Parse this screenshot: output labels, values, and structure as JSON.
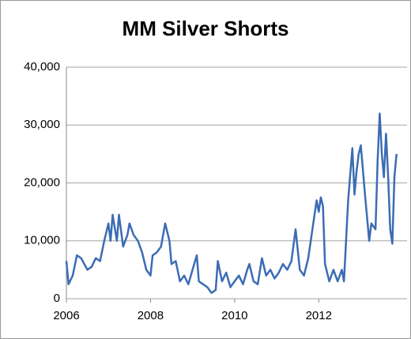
{
  "chart_data": {
    "type": "line",
    "title": "MM Silver Shorts",
    "x": [
      2006.0,
      2006.05,
      2006.15,
      2006.25,
      2006.35,
      2006.5,
      2006.6,
      2006.7,
      2006.8,
      2006.9,
      2007.0,
      2007.05,
      2007.1,
      2007.2,
      2007.25,
      2007.35,
      2007.45,
      2007.5,
      2007.6,
      2007.7,
      2007.8,
      2007.9,
      2008.0,
      2008.05,
      2008.15,
      2008.25,
      2008.35,
      2008.45,
      2008.5,
      2008.6,
      2008.7,
      2008.8,
      2008.9,
      2009.0,
      2009.1,
      2009.15,
      2009.25,
      2009.35,
      2009.45,
      2009.55,
      2009.6,
      2009.7,
      2009.8,
      2009.9,
      2010.0,
      2010.1,
      2010.2,
      2010.3,
      2010.35,
      2010.45,
      2010.55,
      2010.65,
      2010.75,
      2010.85,
      2010.95,
      2011.05,
      2011.15,
      2011.25,
      2011.35,
      2011.45,
      2011.55,
      2011.65,
      2011.75,
      2011.85,
      2011.95,
      2012.0,
      2012.05,
      2012.1,
      2012.15,
      2012.25,
      2012.35,
      2012.45,
      2012.55,
      2012.6,
      2012.7,
      2012.8,
      2012.85,
      2012.9,
      2012.95,
      2013.0,
      2013.1,
      2013.2,
      2013.25,
      2013.35,
      2013.4,
      2013.45,
      2013.5,
      2013.55,
      2013.6,
      2013.65,
      2013.7,
      2013.75,
      2013.8,
      2013.85
    ],
    "series": [
      {
        "name": "MM Silver Shorts",
        "color": "#3c6cb4",
        "values": [
          6500,
          2500,
          4000,
          7500,
          7000,
          5000,
          5500,
          7000,
          6500,
          10000,
          13000,
          10000,
          14500,
          10000,
          14500,
          9000,
          11000,
          13000,
          11000,
          10000,
          8000,
          5000,
          4000,
          7500,
          8000,
          9000,
          13000,
          10000,
          6000,
          6500,
          3000,
          4000,
          2500,
          5000,
          7500,
          3000,
          2500,
          2000,
          1000,
          1500,
          6500,
          3000,
          4500,
          2000,
          3000,
          4000,
          2500,
          5000,
          6000,
          3000,
          2500,
          7000,
          4000,
          5000,
          3500,
          4500,
          6000,
          5000,
          6500,
          12000,
          5000,
          4000,
          7000,
          12000,
          17000,
          15000,
          17500,
          16000,
          6000,
          3000,
          5000,
          3000,
          5000,
          3000,
          17000,
          26000,
          18000,
          22000,
          25000,
          26500,
          18000,
          10000,
          13000,
          12000,
          24000,
          32000,
          25000,
          21000,
          28500,
          21000,
          12000,
          9500,
          21000,
          25000
        ]
      }
    ],
    "xlim": [
      2006,
      2014.1
    ],
    "xticks": [
      2006,
      2008,
      2010,
      2012
    ],
    "ylim": [
      0,
      40000
    ],
    "yticks": [
      0,
      {
        "value": 10000,
        "label": "10,000"
      },
      {
        "value": 20000,
        "label": "20,000"
      },
      {
        "value": 30000,
        "label": "30,000"
      },
      {
        "value": 40000,
        "label": "40,000"
      }
    ],
    "grid": true
  }
}
